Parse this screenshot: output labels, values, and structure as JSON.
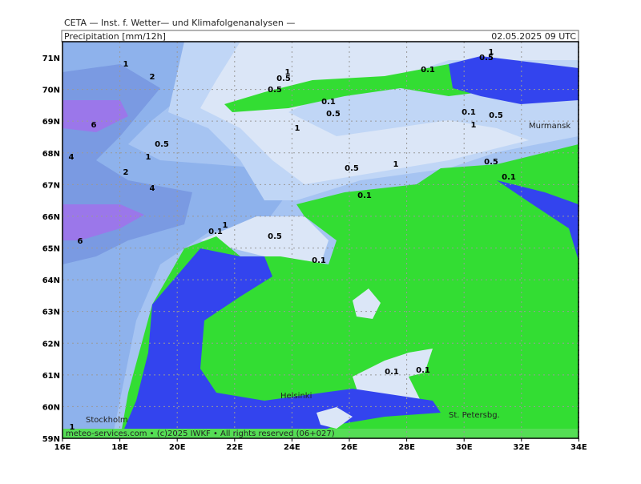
{
  "header": {
    "title": "CETA — Inst. f. Wetter— und Klimafolgenanalysen —",
    "product": "Precipitation [mm/12h]",
    "datetime": "02.05.2025 09 UTC"
  },
  "lat_labels": [
    "71N",
    "70N",
    "69N",
    "68N",
    "67N",
    "66N",
    "65N",
    "64N",
    "63N",
    "62N",
    "61N",
    "60N",
    "59N"
  ],
  "lon_labels": [
    "16E",
    "18E",
    "20E",
    "22E",
    "24E",
    "26E",
    "28E",
    "30E",
    "32E",
    "34E"
  ],
  "places": [
    "Murmansk",
    "Helsinki",
    "St. Petersbg.",
    "Stockholm"
  ],
  "contour_labels": [
    "1",
    "1",
    "0.5",
    "1",
    "2",
    "0.5",
    "0.1",
    "0.5",
    "0.1",
    "6",
    "0.5",
    "0.1",
    "0.5",
    "1",
    "1",
    "0.5",
    "1",
    "4",
    "1",
    "0.5",
    "0.5",
    "2",
    "0.1",
    "4",
    "0.1",
    "1",
    "0.1",
    "0.5",
    "6",
    "0.1",
    "0.1",
    "0.1",
    "1"
  ],
  "footer": "meteo-services.com • (c)2025 IWKF • All rights reserved (06+027)"
}
